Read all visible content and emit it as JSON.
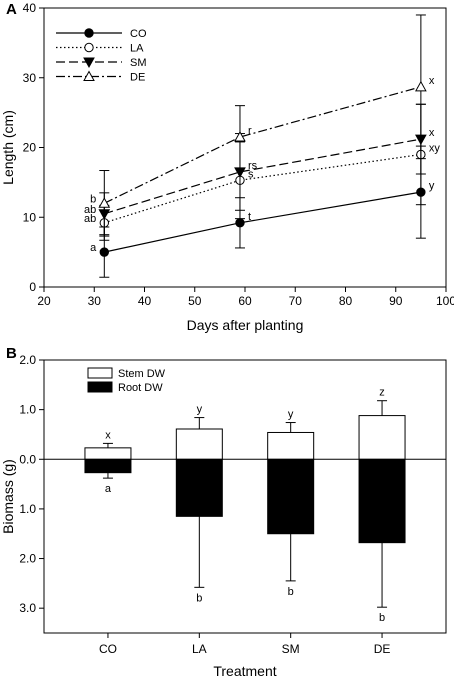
{
  "chart_data": [
    {
      "panel": "A",
      "type": "line",
      "xlabel": "Days after planting",
      "ylabel": "Length (cm)",
      "xlim": [
        20,
        100
      ],
      "ylim": [
        0,
        40
      ],
      "xticks": [
        20,
        30,
        40,
        50,
        60,
        70,
        80,
        90,
        100
      ],
      "yticks": [
        0,
        10,
        20,
        30,
        40
      ],
      "legend_position": "top-left",
      "series": [
        {
          "name": "CO",
          "x": [
            32,
            59,
            95
          ],
          "y": [
            5.0,
            9.2,
            13.6
          ],
          "err": [
            3.6,
            3.6,
            6.6
          ],
          "labels": [
            "a",
            "t",
            "y"
          ],
          "marker": "filled-circle",
          "dash": "solid"
        },
        {
          "name": "LA",
          "x": [
            32,
            59,
            95
          ],
          "y": [
            9.2,
            15.3,
            19.0
          ],
          "err": [
            2.5,
            5.5,
            7.2
          ],
          "labels": [
            "ab",
            "s",
            "xy"
          ],
          "marker": "open-circle",
          "dash": "dotted"
        },
        {
          "name": "SM",
          "x": [
            32,
            59,
            95
          ],
          "y": [
            10.5,
            16.5,
            21.2
          ],
          "err": [
            3.0,
            5.5,
            5.0
          ],
          "labels": [
            "ab",
            "rs",
            "x"
          ],
          "marker": "filled-triangle-down",
          "dash": "dashed"
        },
        {
          "name": "DE",
          "x": [
            32,
            59,
            95
          ],
          "y": [
            12.0,
            21.5,
            28.7
          ],
          "err": [
            4.7,
            4.5,
            10.3
          ],
          "labels": [
            "b",
            "r",
            "x"
          ],
          "marker": "open-triangle-up",
          "dash": "dashdot"
        }
      ]
    },
    {
      "panel": "B",
      "type": "bar",
      "xlabel": "Treatment",
      "ylabel": "Biomass (g)",
      "ylim": [
        -3.5,
        2.0
      ],
      "ytick_values": [
        2.0,
        1.0,
        0.0,
        -1.0,
        -2.0,
        -3.0
      ],
      "ytick_labels": [
        "2.0",
        "1.0",
        "0.0",
        "1.0",
        "2.0",
        "3.0"
      ],
      "categories": [
        "CO",
        "LA",
        "SM",
        "DE"
      ],
      "legend_position": "top-left",
      "series": [
        {
          "name": "Stem DW",
          "fill": "#ffffff",
          "values": [
            0.23,
            0.61,
            0.54,
            0.88
          ],
          "err": [
            0.09,
            0.23,
            0.2,
            0.3
          ],
          "labels": [
            "x",
            "y",
            "y",
            "z"
          ]
        },
        {
          "name": "Root DW",
          "fill": "#000000",
          "values": [
            0.27,
            1.15,
            1.5,
            1.68
          ],
          "err": [
            0.11,
            1.43,
            0.95,
            1.3
          ],
          "labels": [
            "a",
            "b",
            "b",
            "b"
          ]
        }
      ]
    }
  ]
}
